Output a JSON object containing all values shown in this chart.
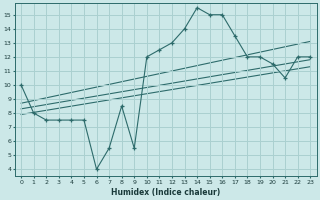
{
  "xlabel": "Humidex (Indice chaleur)",
  "ylabel": "",
  "bg_color": "#cce8e8",
  "line_color": "#2d6b6b",
  "grid_color": "#aad0d0",
  "xlim": [
    -0.5,
    23.5
  ],
  "ylim": [
    3.5,
    15.8
  ],
  "xticks": [
    0,
    1,
    2,
    3,
    4,
    5,
    6,
    7,
    8,
    9,
    10,
    11,
    12,
    13,
    14,
    15,
    16,
    17,
    18,
    19,
    20,
    21,
    22,
    23
  ],
  "yticks": [
    4,
    5,
    6,
    7,
    8,
    9,
    10,
    11,
    12,
    13,
    14,
    15
  ],
  "main_line_x": [
    0,
    1,
    2,
    3,
    4,
    5,
    6,
    7,
    8,
    9,
    10,
    11,
    12,
    13,
    14,
    15,
    16,
    17,
    18,
    19,
    20,
    21,
    22,
    23
  ],
  "main_line_y": [
    10,
    8,
    7.5,
    7.5,
    7.5,
    7.5,
    4,
    5.5,
    8.5,
    5.5,
    12,
    12.5,
    13,
    14,
    15.5,
    15,
    15,
    13.5,
    12,
    12,
    11.5,
    10.5,
    12,
    12
  ],
  "reg_line1_x": [
    0,
    23
  ],
  "reg_line1_y": [
    8.3,
    11.8
  ],
  "reg_line2_x": [
    0,
    23
  ],
  "reg_line2_y": [
    7.9,
    11.3
  ],
  "reg_line3_x": [
    0,
    23
  ],
  "reg_line3_y": [
    8.7,
    13.1
  ]
}
